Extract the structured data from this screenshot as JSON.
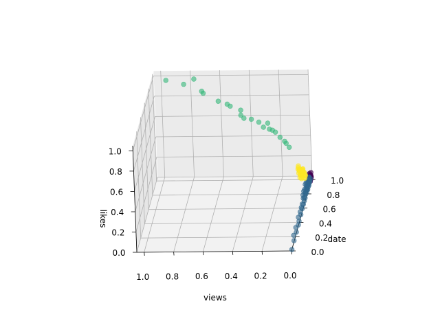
{
  "chart_data": {
    "type": "scatter",
    "projection": "3d",
    "xlabel": "views",
    "ylabel": "date",
    "zlabel": "likes",
    "xlim": [
      0,
      1.05
    ],
    "ylim": [
      0,
      1.05
    ],
    "zlim": [
      0,
      1.05
    ],
    "x_ticks": [
      "0.0",
      "0.2",
      "0.4",
      "0.6",
      "0.8",
      "1.0"
    ],
    "y_ticks": [
      "0.0",
      "0.2",
      "0.4",
      "0.6",
      "0.8",
      "1.0"
    ],
    "z_ticks": [
      "0.0",
      "0.2",
      "0.4",
      "0.6",
      "0.8",
      "1.0"
    ],
    "grid": true,
    "legend": "none",
    "series": [
      {
        "color": "#440154",
        "points": [
          [
            0.0,
            1.0,
            0.04
          ],
          [
            0.0,
            0.98,
            0.03
          ],
          [
            0.01,
            0.97,
            0.05
          ],
          [
            0.0,
            1.01,
            0.02
          ],
          [
            0.01,
            0.99,
            0.04
          ],
          [
            0.0,
            0.96,
            0.03
          ],
          [
            0.01,
            1.0,
            0.06
          ],
          [
            0.0,
            0.99,
            0.01
          ],
          [
            0.01,
            0.98,
            0.02
          ],
          [
            0.0,
            0.97,
            0.05
          ],
          [
            0.01,
            1.01,
            0.03
          ],
          [
            0.0,
            0.95,
            0.04
          ],
          [
            0.01,
            0.96,
            0.02
          ],
          [
            0.0,
            1.0,
            0.07
          ],
          [
            0.01,
            0.99,
            0.01
          ],
          [
            0.0,
            0.98,
            0.06
          ],
          [
            0.01,
            0.97,
            0.03
          ],
          [
            0.0,
            1.0,
            0.02
          ],
          [
            0.01,
            1.0,
            0.05
          ],
          [
            0.0,
            0.96,
            0.01
          ]
        ]
      },
      {
        "color": "#31688e",
        "points": [
          [
            0.0,
            0.02,
            0.0
          ],
          [
            0.0,
            0.13,
            0.01
          ],
          [
            0.01,
            0.19,
            0.02
          ],
          [
            0.0,
            0.25,
            0.01
          ],
          [
            0.01,
            0.3,
            0.02
          ],
          [
            0.0,
            0.35,
            0.01
          ],
          [
            0.0,
            0.39,
            0.02
          ],
          [
            0.01,
            0.43,
            0.03
          ],
          [
            0.0,
            0.48,
            0.02
          ],
          [
            0.01,
            0.52,
            0.02
          ],
          [
            0.0,
            0.55,
            0.03
          ],
          [
            0.01,
            0.58,
            0.02
          ],
          [
            0.0,
            0.61,
            0.03
          ],
          [
            0.01,
            0.63,
            0.02
          ],
          [
            0.0,
            0.66,
            0.03
          ],
          [
            0.01,
            0.68,
            0.04
          ],
          [
            0.0,
            0.7,
            0.03
          ],
          [
            0.01,
            0.72,
            0.02
          ],
          [
            0.0,
            0.74,
            0.04
          ],
          [
            0.01,
            0.76,
            0.03
          ],
          [
            0.0,
            0.78,
            0.03
          ],
          [
            0.01,
            0.79,
            0.02
          ],
          [
            0.0,
            0.8,
            0.04
          ],
          [
            0.01,
            0.82,
            0.03
          ],
          [
            0.0,
            0.83,
            0.02
          ],
          [
            0.01,
            0.84,
            0.05
          ],
          [
            0.0,
            0.85,
            0.03
          ],
          [
            0.01,
            0.86,
            0.02
          ],
          [
            0.0,
            0.87,
            0.04
          ],
          [
            0.01,
            0.88,
            0.03
          ],
          [
            0.0,
            0.89,
            0.02
          ],
          [
            0.01,
            0.9,
            0.05
          ],
          [
            0.0,
            0.91,
            0.03
          ],
          [
            0.01,
            0.92,
            0.02
          ],
          [
            0.0,
            0.93,
            0.04
          ],
          [
            0.01,
            0.94,
            0.03
          ],
          [
            0.0,
            0.95,
            0.02
          ],
          [
            0.01,
            0.96,
            0.05
          ],
          [
            0.0,
            0.97,
            0.03
          ],
          [
            0.01,
            0.98,
            0.04
          ],
          [
            0.02,
            0.9,
            0.04
          ],
          [
            0.02,
            0.86,
            0.05
          ],
          [
            0.02,
            0.82,
            0.03
          ],
          [
            0.02,
            0.78,
            0.04
          ],
          [
            0.02,
            0.74,
            0.03
          ]
        ]
      },
      {
        "color": "#fde725",
        "points": [
          [
            0.06,
            0.97,
            0.1
          ],
          [
            0.05,
            0.95,
            0.11
          ],
          [
            0.07,
            0.98,
            0.12
          ],
          [
            0.04,
            0.93,
            0.09
          ],
          [
            0.06,
            0.96,
            0.12
          ],
          [
            0.05,
            0.94,
            0.1
          ],
          [
            0.07,
            0.96,
            0.13
          ],
          [
            0.04,
            0.95,
            0.11
          ],
          [
            0.06,
            0.93,
            0.1
          ],
          [
            0.05,
            0.98,
            0.12
          ],
          [
            0.03,
            0.94,
            0.08
          ],
          [
            0.04,
            0.97,
            0.09
          ],
          [
            0.06,
            0.94,
            0.11
          ],
          [
            0.05,
            0.96,
            0.13
          ],
          [
            0.03,
            0.92,
            0.07
          ],
          [
            0.06,
            0.98,
            0.11
          ],
          [
            0.05,
            0.92,
            0.09
          ],
          [
            0.07,
            0.95,
            0.12
          ],
          [
            0.04,
            0.96,
            0.1
          ],
          [
            0.03,
            0.95,
            0.08
          ],
          [
            0.06,
            0.92,
            0.1
          ],
          [
            0.05,
            0.97,
            0.11
          ],
          [
            0.08,
            0.97,
            0.14
          ],
          [
            0.08,
            0.96,
            0.13
          ],
          [
            0.07,
            0.94,
            0.13
          ],
          [
            0.04,
            0.91,
            0.08
          ],
          [
            0.06,
            0.9,
            0.09
          ],
          [
            0.07,
            0.92,
            0.12
          ],
          [
            0.05,
            0.9,
            0.08
          ],
          [
            0.08,
            0.98,
            0.15
          ]
        ]
      },
      {
        "color": "#35b779",
        "points": [
          [
            0.96,
            1.0,
            0.99
          ],
          [
            0.84,
            1.0,
            0.95
          ],
          [
            0.77,
            1.0,
            1.0
          ],
          [
            0.72,
            1.0,
            0.88
          ],
          [
            0.71,
            1.0,
            0.86
          ],
          [
            0.61,
            1.0,
            0.78
          ],
          [
            0.55,
            1.0,
            0.75
          ],
          [
            0.53,
            1.0,
            0.73
          ],
          [
            0.46,
            1.0,
            0.69
          ],
          [
            0.46,
            1.0,
            0.64
          ],
          [
            0.44,
            1.0,
            0.61
          ],
          [
            0.39,
            1.0,
            0.6
          ],
          [
            0.34,
            1.0,
            0.57
          ],
          [
            0.31,
            1.0,
            0.52
          ],
          [
            0.28,
            1.0,
            0.56
          ],
          [
            0.27,
            1.0,
            0.5
          ],
          [
            0.25,
            1.0,
            0.49
          ],
          [
            0.23,
            1.0,
            0.47
          ],
          [
            0.2,
            1.0,
            0.42
          ],
          [
            0.17,
            1.0,
            0.38
          ],
          [
            0.16,
            1.0,
            0.36
          ],
          [
            0.14,
            1.0,
            0.32
          ]
        ]
      }
    ]
  }
}
